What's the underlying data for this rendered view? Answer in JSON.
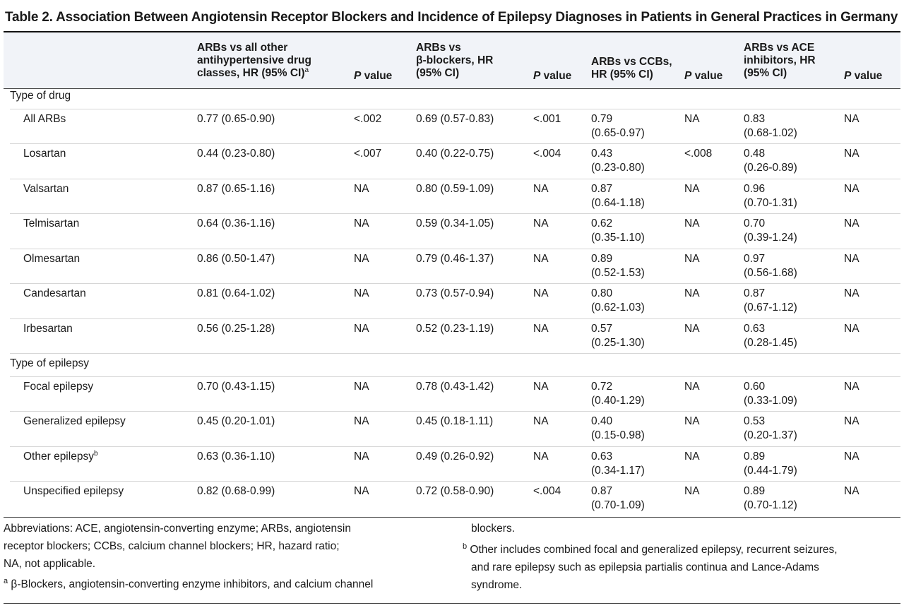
{
  "title": "Table 2. Association Between Angiotensin Receptor Blockers and Incidence of Epilepsy Diagnoses in Patients in General Practices in Germany",
  "headers": {
    "c1": {
      "line1": "ARBs vs all other",
      "line2": "antihypertensive drug",
      "line3": "classes, HR (95% CI)",
      "sup": "a"
    },
    "p": {
      "italic": "P",
      "text": " value"
    },
    "c2": {
      "line1": "ARBs vs",
      "line2": "β-blockers, HR",
      "line3": "(95% CI)"
    },
    "c3": {
      "line1": "ARBs vs CCBs,",
      "line2": "HR (95% CI)"
    },
    "c4": {
      "line1": "ARBs vs ACE",
      "line2": "inhibitors, HR",
      "line3": "(95% CI)"
    }
  },
  "sections": {
    "drug": "Type of drug",
    "epilepsy": "Type of epilepsy"
  },
  "rows": [
    {
      "label": "All ARBs",
      "c1": "0.77 (0.65-0.90)",
      "p1": "<.002",
      "c2": "0.69 (0.57-0.83)",
      "p2": "<.001",
      "c3a": "0.79",
      "c3b": "(0.65-0.97)",
      "p3": "NA",
      "c4a": "0.83",
      "c4b": "(0.68-1.02)",
      "p4": "NA"
    },
    {
      "label": "Losartan",
      "c1": "0.44 (0.23-0.80)",
      "p1": "<.007",
      "c2": "0.40 (0.22-0.75)",
      "p2": "<.004",
      "c3a": "0.43",
      "c3b": "(0.23-0.80)",
      "p3": "<.008",
      "c4a": "0.48",
      "c4b": "(0.26-0.89)",
      "p4": "NA"
    },
    {
      "label": "Valsartan",
      "c1": "0.87 (0.65-1.16)",
      "p1": "NA",
      "c2": "0.80 (0.59-1.09)",
      "p2": "NA",
      "c3a": "0.87",
      "c3b": "(0.64-1.18)",
      "p3": "NA",
      "c4a": "0.96",
      "c4b": "(0.70-1.31)",
      "p4": "NA"
    },
    {
      "label": "Telmisartan",
      "c1": "0.64 (0.36-1.16)",
      "p1": "NA",
      "c2": "0.59 (0.34-1.05)",
      "p2": "NA",
      "c3a": "0.62",
      "c3b": "(0.35-1.10)",
      "p3": "NA",
      "c4a": "0.70",
      "c4b": "(0.39-1.24)",
      "p4": "NA"
    },
    {
      "label": "Olmesartan",
      "c1": "0.86 (0.50-1.47)",
      "p1": "NA",
      "c2": "0.79 (0.46-1.37)",
      "p2": "NA",
      "c3a": "0.89",
      "c3b": "(0.52-1.53)",
      "p3": "NA",
      "c4a": "0.97",
      "c4b": "(0.56-1.68)",
      "p4": "NA"
    },
    {
      "label": "Candesartan",
      "c1": "0.81 (0.64-1.02)",
      "p1": "NA",
      "c2": "0.73 (0.57-0.94)",
      "p2": "NA",
      "c3a": "0.80",
      "c3b": "(0.62-1.03)",
      "p3": "NA",
      "c4a": "0.87",
      "c4b": "(0.67-1.12)",
      "p4": "NA"
    },
    {
      "label": "Irbesartan",
      "c1": "0.56 (0.25-1.28)",
      "p1": "NA",
      "c2": "0.52 (0.23-1.19)",
      "p2": "NA",
      "c3a": "0.57",
      "c3b": "(0.25-1.30)",
      "p3": "NA",
      "c4a": "0.63",
      "c4b": "(0.28-1.45)",
      "p4": "NA"
    },
    {
      "label": "Focal epilepsy",
      "c1": "0.70 (0.43-1.15)",
      "p1": "NA",
      "c2": "0.78 (0.43-1.42)",
      "p2": "NA",
      "c3a": "0.72",
      "c3b": "(0.40-1.29)",
      "p3": "NA",
      "c4a": "0.60",
      "c4b": "(0.33-1.09)",
      "p4": "NA"
    },
    {
      "label": "Generalized epilepsy",
      "c1": "0.45 (0.20-1.01)",
      "p1": "NA",
      "c2": "0.45 (0.18-1.11)",
      "p2": "NA",
      "c3a": "0.40",
      "c3b": "(0.15-0.98)",
      "p3": "NA",
      "c4a": "0.53",
      "c4b": "(0.20-1.37)",
      "p4": "NA"
    },
    {
      "label": "Other epilepsy",
      "sup": "b",
      "c1": "0.63 (0.36-1.10)",
      "p1": "NA",
      "c2": "0.49 (0.26-0.92)",
      "p2": "NA",
      "c3a": "0.63",
      "c3b": "(0.34-1.17)",
      "p3": "NA",
      "c4a": "0.89",
      "c4b": "(0.44-1.79)",
      "p4": "NA"
    },
    {
      "label": "Unspecified epilepsy",
      "c1": "0.82 (0.68-0.99)",
      "p1": "NA",
      "c2": "0.72 (0.58-0.90)",
      "p2": "<.004",
      "c3a": "0.87",
      "c3b": "(0.70-1.09)",
      "p3": "NA",
      "c4a": "0.89",
      "c4b": "(0.70-1.12)",
      "p4": "NA"
    }
  ],
  "footnotes": {
    "abbrev": {
      "line1": "Abbreviations: ACE, angiotensin-converting enzyme; ARBs, angiotensin",
      "line2": "receptor blockers; CCBs, calcium channel blockers; HR, hazard ratio;",
      "line3": "NA, not applicable."
    },
    "a": {
      "sup": "a",
      "line1": " β-Blockers, angiotensin-converting enzyme inhibitors, and calcium channel",
      "line2": "blockers."
    },
    "b": {
      "sup": "b",
      "line1": " Other includes combined focal and generalized epilepsy, recurrent seizures,",
      "line2": "and rare epilepsy such as epilepsia partialis continua and Lance-Adams",
      "line3": "syndrome."
    }
  }
}
